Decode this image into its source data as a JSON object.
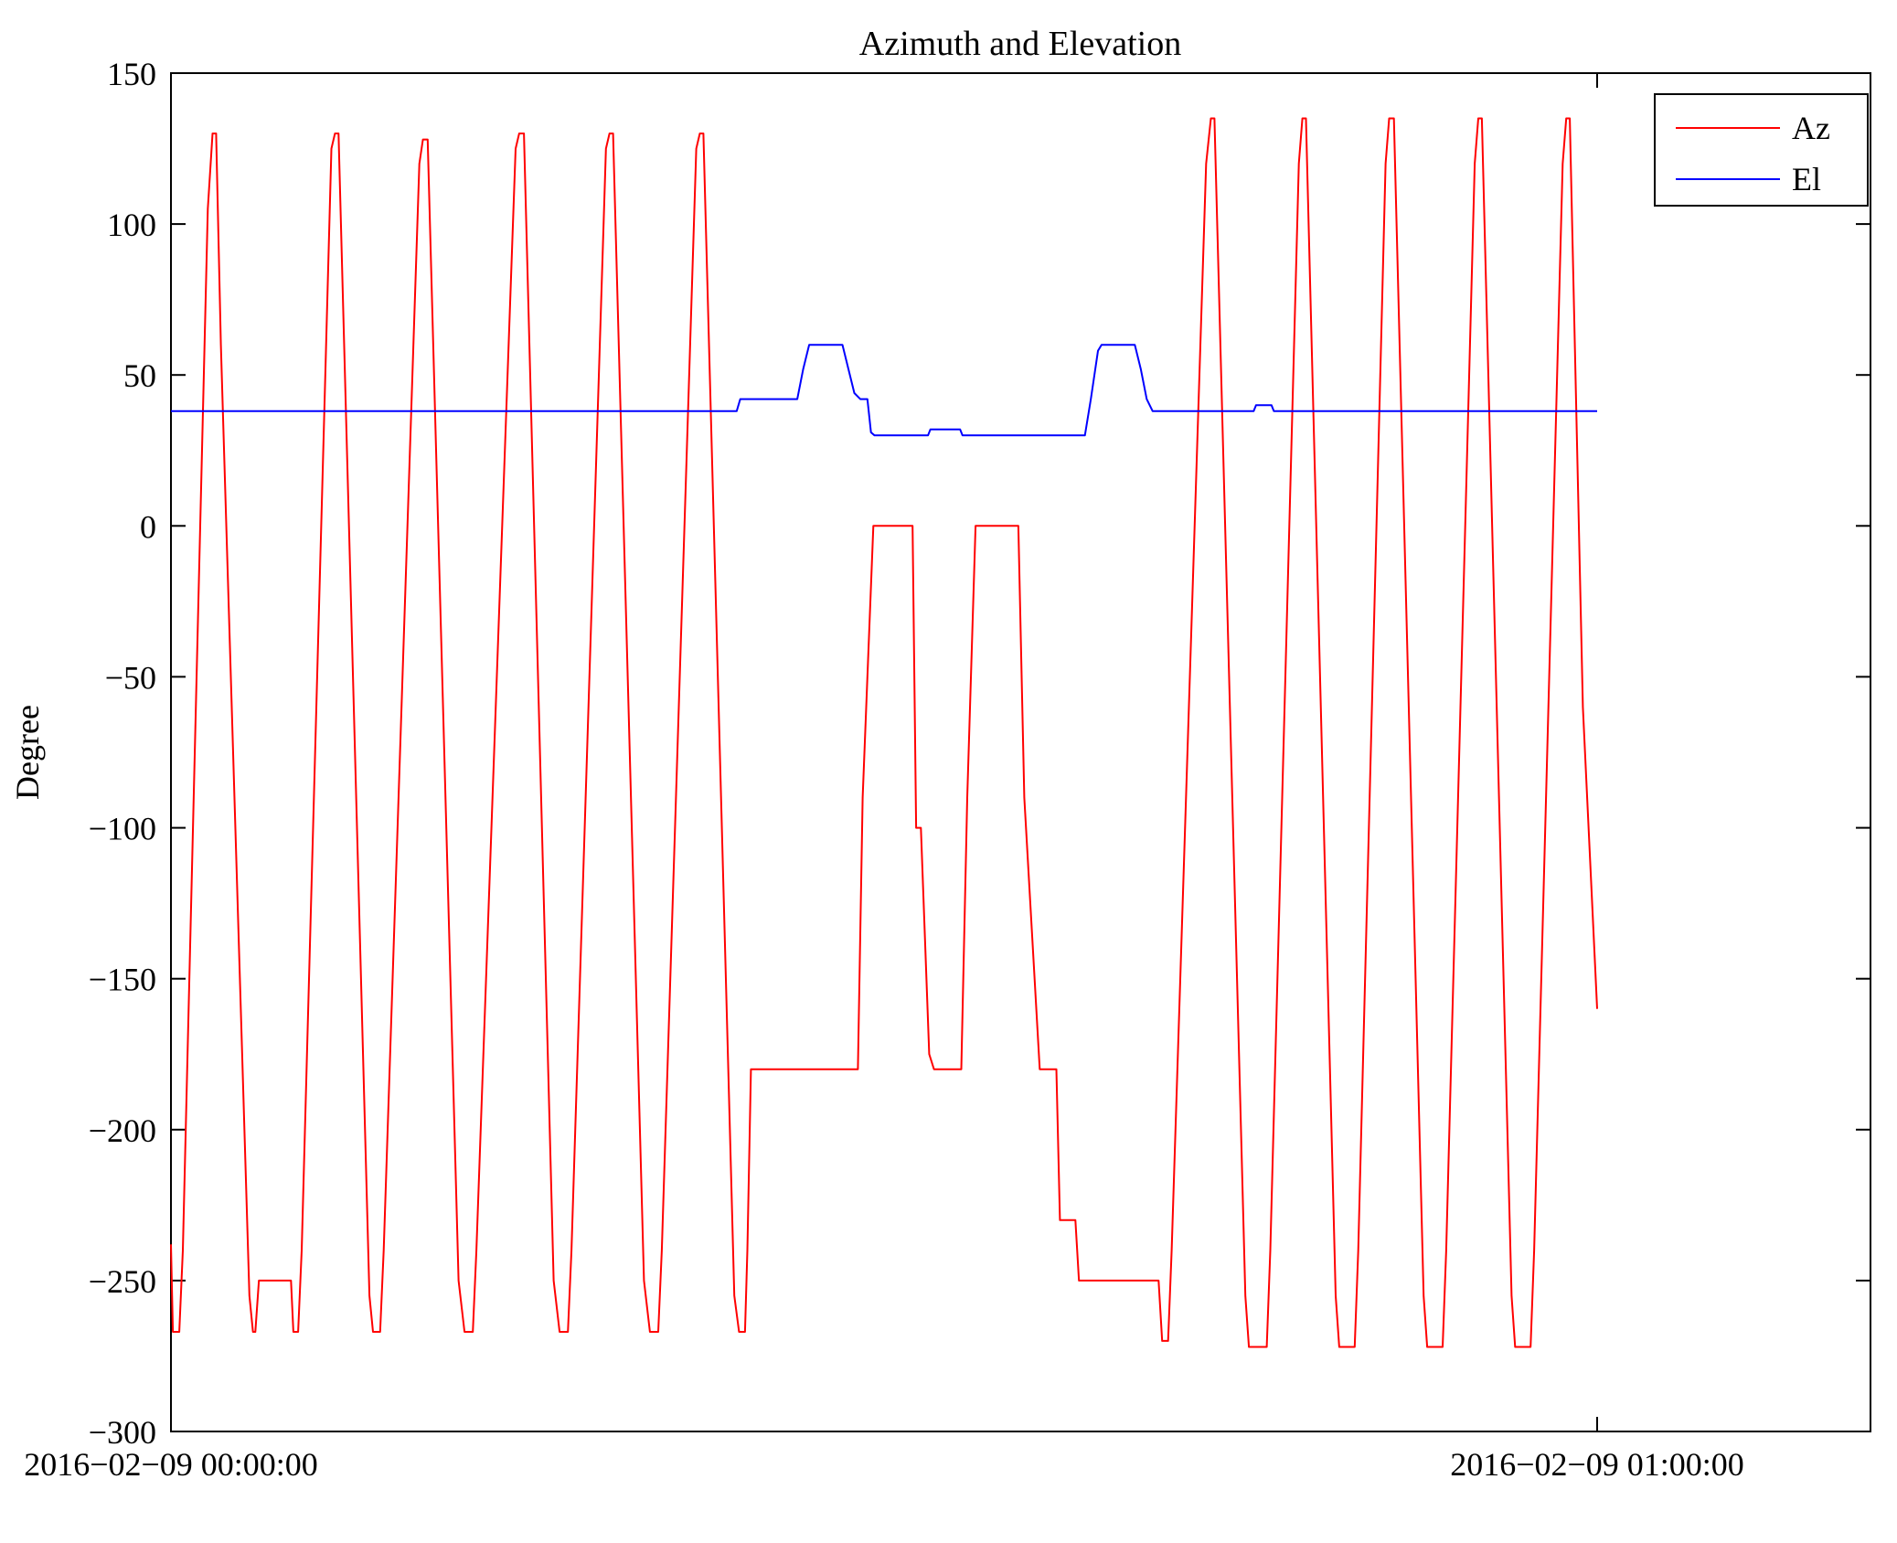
{
  "chart_data": {
    "type": "line",
    "title": "Azimuth and Elevation",
    "xlabel": "",
    "ylabel": "Degree",
    "ylim": [
      -300,
      150
    ],
    "xlim_minutes": [
      0,
      71.5
    ],
    "grid": "off",
    "legend_position": "top-right",
    "y_ticks": [
      150,
      100,
      50,
      0,
      -50,
      -100,
      -150,
      -200,
      -250,
      -300
    ],
    "y_tick_labels": [
      "150",
      "100",
      "50",
      "0",
      "−50",
      "−100",
      "−150",
      "−200",
      "−250",
      "−300"
    ],
    "x_ticks": [
      {
        "minute": 0,
        "label": "2016−02−09 00:00:00"
      },
      {
        "minute": 60,
        "label": "2016−02−09 01:00:00"
      }
    ],
    "legend": [
      {
        "name": "Az",
        "color": "#ff0000"
      },
      {
        "name": "El",
        "color": "#0000ff"
      }
    ],
    "series": [
      {
        "name": "Az",
        "color": "#ff0000",
        "units": "degrees vs minutes after 2016-02-09 00:00:00",
        "points": [
          [
            0.0,
            -238
          ],
          [
            0.08,
            -267
          ],
          [
            0.35,
            -267
          ],
          [
            0.5,
            -240
          ],
          [
            1.55,
            105
          ],
          [
            1.75,
            130
          ],
          [
            1.9,
            130
          ],
          [
            2.1,
            60
          ],
          [
            3.3,
            -255
          ],
          [
            3.45,
            -267
          ],
          [
            3.55,
            -267
          ],
          [
            3.7,
            -250
          ],
          [
            5.05,
            -250
          ],
          [
            5.15,
            -267
          ],
          [
            5.35,
            -267
          ],
          [
            5.5,
            -240
          ],
          [
            6.75,
            125
          ],
          [
            6.9,
            130
          ],
          [
            7.05,
            130
          ],
          [
            8.35,
            -255
          ],
          [
            8.5,
            -267
          ],
          [
            8.8,
            -267
          ],
          [
            8.95,
            -240
          ],
          [
            10.45,
            120
          ],
          [
            10.6,
            128
          ],
          [
            10.8,
            128
          ],
          [
            12.1,
            -250
          ],
          [
            12.35,
            -267
          ],
          [
            12.7,
            -267
          ],
          [
            12.85,
            -240
          ],
          [
            14.5,
            125
          ],
          [
            14.65,
            130
          ],
          [
            14.85,
            130
          ],
          [
            16.1,
            -250
          ],
          [
            16.35,
            -267
          ],
          [
            16.7,
            -267
          ],
          [
            16.85,
            -240
          ],
          [
            18.3,
            125
          ],
          [
            18.45,
            130
          ],
          [
            18.6,
            130
          ],
          [
            19.9,
            -250
          ],
          [
            20.15,
            -267
          ],
          [
            20.5,
            -267
          ],
          [
            20.65,
            -240
          ],
          [
            22.1,
            125
          ],
          [
            22.25,
            130
          ],
          [
            22.4,
            130
          ],
          [
            23.7,
            -255
          ],
          [
            23.9,
            -267
          ],
          [
            24.15,
            -267
          ],
          [
            24.25,
            -240
          ],
          [
            24.4,
            -180
          ],
          [
            28.9,
            -180
          ],
          [
            29.1,
            -90
          ],
          [
            29.55,
            0
          ],
          [
            31.2,
            0
          ],
          [
            31.35,
            -100
          ],
          [
            31.55,
            -100
          ],
          [
            31.9,
            -175
          ],
          [
            32.1,
            -180
          ],
          [
            33.25,
            -180
          ],
          [
            33.5,
            -90
          ],
          [
            33.85,
            0
          ],
          [
            35.65,
            0
          ],
          [
            35.9,
            -90
          ],
          [
            36.55,
            -180
          ],
          [
            37.25,
            -180
          ],
          [
            37.4,
            -230
          ],
          [
            38.05,
            -230
          ],
          [
            38.2,
            -250
          ],
          [
            41.55,
            -250
          ],
          [
            41.7,
            -270
          ],
          [
            41.95,
            -270
          ],
          [
            42.1,
            -240
          ],
          [
            43.55,
            120
          ],
          [
            43.75,
            135
          ],
          [
            43.9,
            135
          ],
          [
            45.2,
            -255
          ],
          [
            45.35,
            -272
          ],
          [
            46.1,
            -272
          ],
          [
            46.25,
            -240
          ],
          [
            47.45,
            120
          ],
          [
            47.6,
            135
          ],
          [
            47.75,
            135
          ],
          [
            49.0,
            -255
          ],
          [
            49.15,
            -272
          ],
          [
            49.8,
            -272
          ],
          [
            49.95,
            -240
          ],
          [
            51.1,
            120
          ],
          [
            51.25,
            135
          ],
          [
            51.45,
            135
          ],
          [
            52.7,
            -255
          ],
          [
            52.85,
            -272
          ],
          [
            53.5,
            -272
          ],
          [
            53.65,
            -240
          ],
          [
            54.85,
            120
          ],
          [
            55.0,
            135
          ],
          [
            55.15,
            135
          ],
          [
            56.4,
            -255
          ],
          [
            56.55,
            -272
          ],
          [
            57.2,
            -272
          ],
          [
            57.35,
            -240
          ],
          [
            58.55,
            120
          ],
          [
            58.7,
            135
          ],
          [
            58.85,
            135
          ],
          [
            59.4,
            -60
          ],
          [
            60.0,
            -160
          ]
        ]
      },
      {
        "name": "El",
        "color": "#0000ff",
        "units": "degrees vs minutes after 2016-02-09 00:00:00",
        "points": [
          [
            0.0,
            38
          ],
          [
            23.8,
            38
          ],
          [
            23.95,
            42
          ],
          [
            26.35,
            42
          ],
          [
            26.6,
            52
          ],
          [
            26.85,
            60
          ],
          [
            28.25,
            60
          ],
          [
            28.5,
            52
          ],
          [
            28.75,
            44
          ],
          [
            29.0,
            42
          ],
          [
            29.3,
            42
          ],
          [
            29.45,
            31
          ],
          [
            29.6,
            30
          ],
          [
            31.85,
            30
          ],
          [
            31.95,
            32
          ],
          [
            33.2,
            32
          ],
          [
            33.3,
            30
          ],
          [
            38.45,
            30
          ],
          [
            38.7,
            42
          ],
          [
            39.0,
            58
          ],
          [
            39.15,
            60
          ],
          [
            40.55,
            60
          ],
          [
            40.8,
            52
          ],
          [
            41.05,
            42
          ],
          [
            41.3,
            38
          ],
          [
            45.55,
            38
          ],
          [
            45.65,
            40
          ],
          [
            46.3,
            40
          ],
          [
            46.4,
            38
          ],
          [
            60.0,
            38
          ]
        ]
      }
    ]
  }
}
